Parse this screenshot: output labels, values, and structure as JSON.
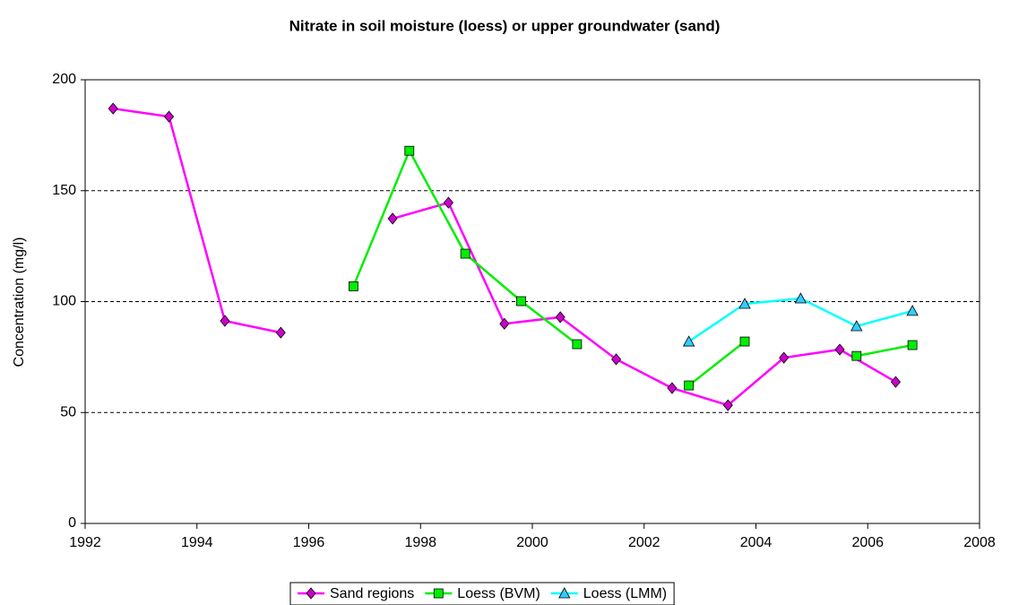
{
  "chart_data": {
    "type": "line",
    "title": "Nitrate in soil moisture (loess) or upper groundwater (sand)",
    "ylabel": "Concentration (mg/l)",
    "xlim": [
      1992,
      2008
    ],
    "xticks": [
      1992,
      1994,
      1996,
      1998,
      2000,
      2002,
      2004,
      2006,
      2008
    ],
    "ylim": [
      0,
      200
    ],
    "yticks": [
      0,
      50,
      100,
      150,
      200
    ],
    "grid": true,
    "legend": "bottom",
    "series": [
      {
        "name": "Sand regions",
        "color": "#ff00ff",
        "marker": "diamond",
        "x": [
          1992.5,
          1993.5,
          1994.5,
          1995.5,
          1996.5,
          1997.5,
          1998.5,
          1999.5,
          2000.5,
          2001.5,
          2002.5,
          2003.5,
          2004.5,
          2005.5,
          2006.5
        ],
        "values": [
          187,
          183.4,
          91.3,
          86,
          null,
          137.4,
          144.6,
          90,
          93,
          74,
          61,
          53.3,
          74.7,
          78.4,
          63.8
        ]
      },
      {
        "name": "Loess (BVM)",
        "color": "#00ee00",
        "marker": "square",
        "x": [
          1996.8,
          1997.8,
          1998.8,
          1999.8,
          2000.8,
          2001.8,
          2002.8,
          2003.8,
          2004.8,
          2005.8,
          2006.8
        ],
        "values": [
          106.9,
          168,
          121.6,
          100.2,
          80.8,
          null,
          62.2,
          82,
          null,
          75.5,
          80.4
        ]
      },
      {
        "name": "Loess (LMM)",
        "color": "#00ffff",
        "marker": "triangle",
        "x": [
          2002.8,
          2003.8,
          2004.8,
          2005.8,
          2006.8
        ],
        "values": [
          82,
          99,
          101.4,
          88.9,
          95.8
        ]
      }
    ]
  }
}
